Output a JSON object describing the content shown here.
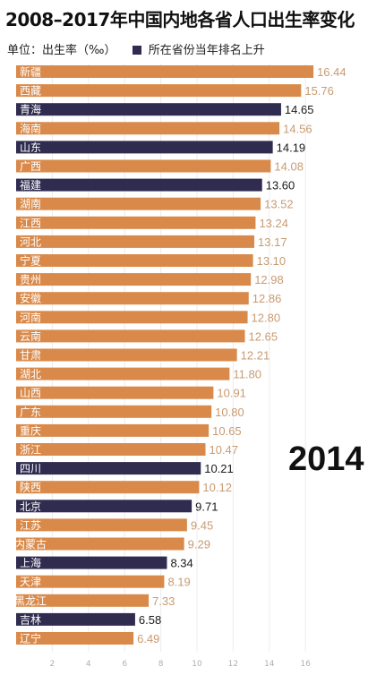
{
  "title": "2008–2017年中国内地各省人口出生率变化",
  "legend": {
    "unit": "单位：出生率（‰）",
    "highlight": "所在省份当年排名上升"
  },
  "year": "2014",
  "colors": {
    "normal_bar": "#d98a4a",
    "highlight_bar": "#2f2c4f",
    "normal_label_bg": "#d98a4a",
    "highlight_label_bg": "#2f2c4f",
    "normal_value": "#c89b72",
    "highlight_value": "#1a1a1a"
  },
  "chart_data": {
    "type": "bar",
    "orientation": "horizontal",
    "title": "2008–2017年中国内地各省人口出生率变化",
    "unit": "出生率（‰）",
    "year": "2014",
    "categories": [
      "新疆",
      "西藏",
      "青海",
      "海南",
      "山东",
      "广西",
      "福建",
      "湖南",
      "江西",
      "河北",
      "宁夏",
      "贵州",
      "安徽",
      "河南",
      "云南",
      "甘肃",
      "湖北",
      "山西",
      "广东",
      "重庆",
      "浙江",
      "四川",
      "陕西",
      "北京",
      "江苏",
      "内蒙古",
      "上海",
      "天津",
      "黑龙江",
      "吉林",
      "辽宁"
    ],
    "values": [
      16.44,
      15.76,
      14.65,
      14.56,
      14.19,
      14.08,
      13.6,
      13.52,
      13.24,
      13.17,
      13.1,
      12.98,
      12.86,
      12.8,
      12.65,
      12.21,
      11.8,
      10.91,
      10.8,
      10.65,
      10.47,
      10.21,
      10.12,
      9.71,
      9.45,
      9.29,
      8.34,
      8.19,
      7.33,
      6.58,
      6.49
    ],
    "value_labels": [
      "16.44",
      "15.76",
      "14.65",
      "14.56",
      "14.19",
      "14.08",
      "13.60",
      "13.52",
      "13.24",
      "13.17",
      "13.10",
      "12.98",
      "12.86",
      "12.80",
      "12.65",
      "12.21",
      "11.80",
      "10.91",
      "10.80",
      "10.65",
      "10.47",
      "10.21",
      "10.12",
      "9.71",
      "9.45",
      "9.29",
      "8.34",
      "8.19",
      "7.33",
      "6.58",
      "6.49"
    ],
    "rank_up": [
      false,
      false,
      true,
      false,
      true,
      false,
      true,
      false,
      false,
      false,
      false,
      false,
      false,
      false,
      false,
      false,
      false,
      false,
      false,
      false,
      false,
      true,
      false,
      true,
      false,
      false,
      true,
      false,
      false,
      true,
      false
    ],
    "x_ticks": [
      2,
      4,
      6,
      8,
      10,
      12,
      14,
      16
    ],
    "xlim": [
      0,
      17.3
    ],
    "grid": true
  }
}
